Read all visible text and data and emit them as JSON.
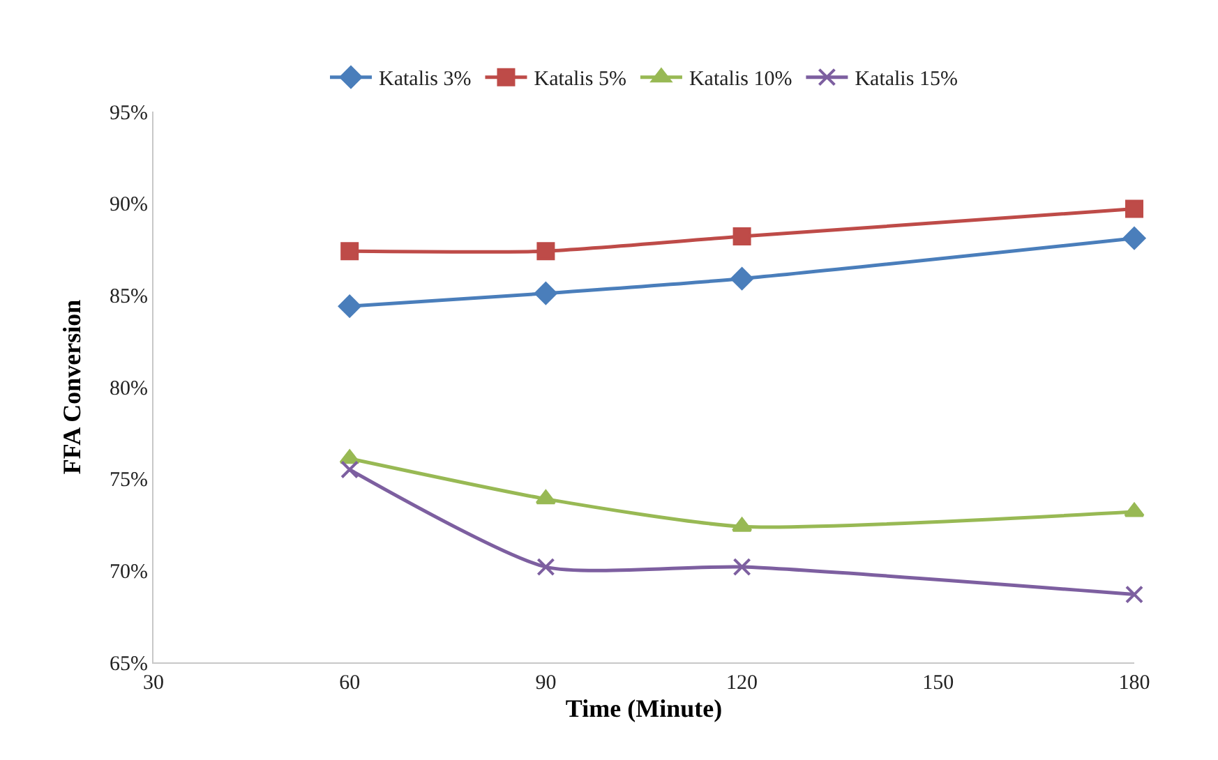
{
  "chart_data": {
    "type": "line",
    "xlabel": "Time (Minute)",
    "ylabel": "FFA Conversion",
    "x": [
      60,
      90,
      120,
      180
    ],
    "xlim": [
      30,
      180
    ],
    "xticks": [
      30,
      60,
      90,
      120,
      150,
      180
    ],
    "ylim": [
      65,
      95
    ],
    "yticks": [
      {
        "value": 65,
        "label": "65%"
      },
      {
        "value": 70,
        "label": "70%"
      },
      {
        "value": 75,
        "label": "75%"
      },
      {
        "value": 80,
        "label": "80%"
      },
      {
        "value": 85,
        "label": "85%"
      },
      {
        "value": 90,
        "label": "90%"
      },
      {
        "value": 95,
        "label": "95%"
      }
    ],
    "legend": "top",
    "line_style": "solid",
    "series": [
      {
        "name": "Katalis 3%",
        "color": "#4a7ebb",
        "marker": "diamond",
        "values": [
          84.4,
          85.1,
          85.9,
          88.1
        ]
      },
      {
        "name": "Katalis 5%",
        "color": "#be4b48",
        "marker": "square",
        "values": [
          87.4,
          87.4,
          88.2,
          89.7
        ]
      },
      {
        "name": "Katalis 10%",
        "color": "#98b954",
        "marker": "triangle",
        "values": [
          76.1,
          73.9,
          72.4,
          73.2
        ]
      },
      {
        "name": "Katalis 15%",
        "color": "#7d5fa0",
        "marker": "cross",
        "values": [
          75.5,
          70.2,
          70.2,
          68.7
        ]
      }
    ]
  }
}
